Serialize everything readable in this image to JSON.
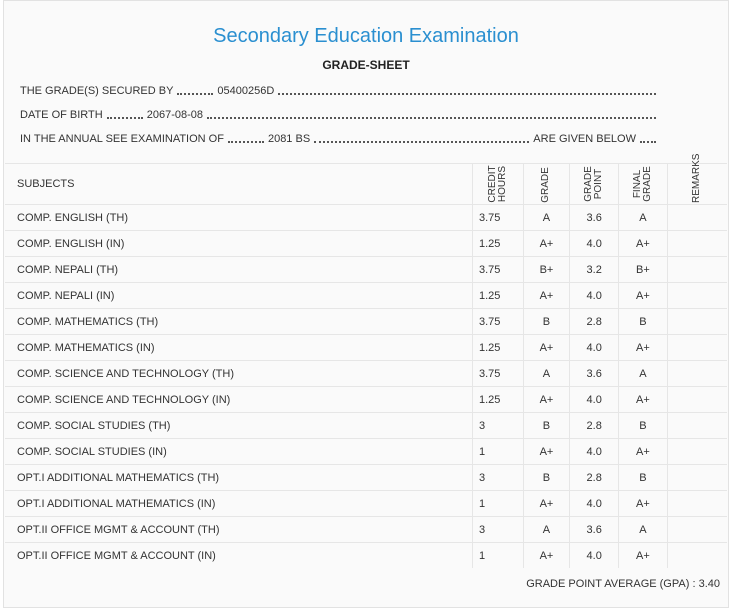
{
  "header": {
    "title": "Secondary Education Examination",
    "subtitle": "GRADE-SHEET"
  },
  "info": [
    {
      "label": "THE GRADE(S) SECURED BY",
      "value": "05400256D"
    },
    {
      "label": "DATE OF BIRTH",
      "value": "2067-08-08"
    },
    {
      "label": "IN THE ANNUAL SEE EXAMINATION OF",
      "value": "2081 BS",
      "suffix": "ARE GIVEN BELOW"
    }
  ],
  "table": {
    "columns": [
      "SUBJECTS",
      "CREDIT HOURS",
      "GRADE",
      "GRADE POINT",
      "FINAL GRADE",
      "REMARKS"
    ],
    "rows": [
      [
        "COMP. ENGLISH (TH)",
        "3.75",
        "A",
        "3.6",
        "A"
      ],
      [
        "COMP. ENGLISH (IN)",
        "1.25",
        "A+",
        "4.0",
        "A+"
      ],
      [
        "COMP. NEPALI (TH)",
        "3.75",
        "B+",
        "3.2",
        "B+"
      ],
      [
        "COMP. NEPALI (IN)",
        "1.25",
        "A+",
        "4.0",
        "A+"
      ],
      [
        "COMP. MATHEMATICS (TH)",
        "3.75",
        "B",
        "2.8",
        "B"
      ],
      [
        "COMP. MATHEMATICS (IN)",
        "1.25",
        "A+",
        "4.0",
        "A+"
      ],
      [
        "COMP. SCIENCE AND TECHNOLOGY (TH)",
        "3.75",
        "A",
        "3.6",
        "A"
      ],
      [
        "COMP. SCIENCE AND TECHNOLOGY (IN)",
        "1.25",
        "A+",
        "4.0",
        "A+"
      ],
      [
        "COMP. SOCIAL STUDIES (TH)",
        "3",
        "B",
        "2.8",
        "B"
      ],
      [
        "COMP. SOCIAL STUDIES (IN)",
        "1",
        "A+",
        "4.0",
        "A+"
      ],
      [
        "OPT.I ADDITIONAL MATHEMATICS (TH)",
        "3",
        "B",
        "2.8",
        "B"
      ],
      [
        "OPT.I ADDITIONAL MATHEMATICS (IN)",
        "1",
        "A+",
        "4.0",
        "A+"
      ],
      [
        "OPT.II OFFICE MGMT & ACCOUNT (TH)",
        "3",
        "A",
        "3.6",
        "A"
      ],
      [
        "OPT.II OFFICE MGMT & ACCOUNT (IN)",
        "1",
        "A+",
        "4.0",
        "A+"
      ]
    ]
  },
  "gpa": {
    "label": "GRADE POINT AVERAGE (GPA) :",
    "value": "3.40"
  }
}
